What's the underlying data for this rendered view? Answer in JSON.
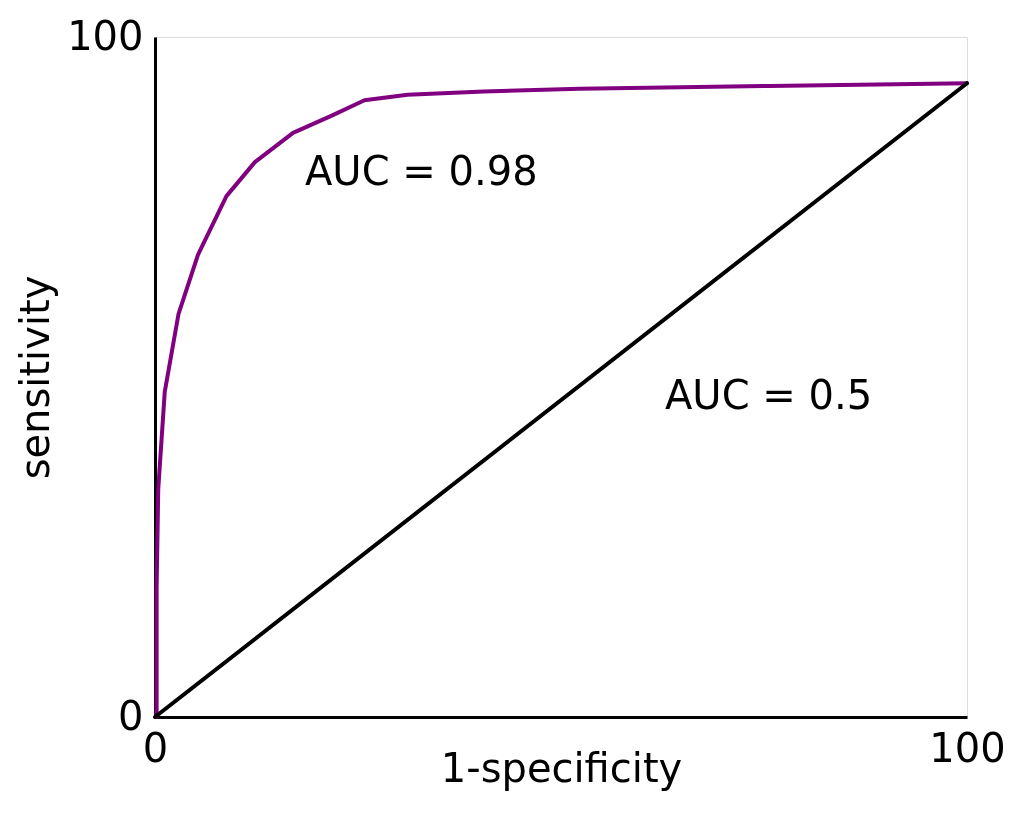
{
  "chart_data": {
    "type": "line",
    "xlabel": "1-specificity",
    "ylabel": "sensitivity",
    "xlim": [
      0,
      100
    ],
    "ylim": [
      0,
      100
    ],
    "xticks": [
      0,
      100
    ],
    "yticks": [
      0,
      100
    ],
    "grid": false,
    "legend": false,
    "marker": "none",
    "line_style": "solid",
    "series": [
      {
        "color": "#800080",
        "x": [
          0.2,
          0.2,
          0.4,
          1.2,
          2.9,
          5.3,
          8.8,
          12.3,
          17.0,
          21.7,
          25.8,
          31.1,
          40.5,
          52.3,
          75.7,
          100
        ],
        "values": [
          0,
          19.1,
          33.5,
          47.8,
          59.3,
          68.0,
          76.6,
          81.6,
          85.9,
          88.4,
          90.7,
          91.5,
          92.0,
          92.4,
          92.8,
          93.2
        ]
      },
      {
        "color": "#000000",
        "x": [
          0,
          100
        ],
        "values": [
          0,
          93.2
        ]
      }
    ],
    "annotations": [
      "AUC = 0.98",
      "AUC = 0.5"
    ]
  }
}
